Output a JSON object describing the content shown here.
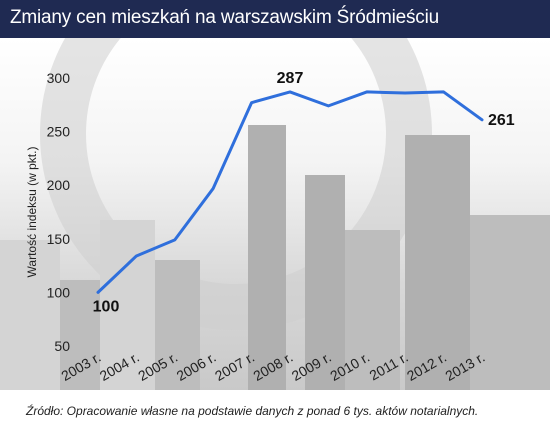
{
  "header": {
    "title": "Zmiany cen mieszkań na warszawskim Śródmieściu"
  },
  "colors": {
    "header_bg": "#1f2a52",
    "line": "#2f6fdc"
  },
  "chart_data": {
    "type": "line",
    "categories": [
      "2003 r.",
      "2004 r.",
      "2005 r.",
      "2006 r.",
      "2007 r.",
      "2008 r.",
      "2009 r.",
      "2010 r.",
      "2011 r.",
      "2012 r.",
      "2013 r."
    ],
    "series": [
      {
        "values": [
          100,
          134,
          149,
          197,
          277,
          287,
          274,
          287,
          286,
          287,
          261
        ]
      }
    ],
    "ylabel": "Wartość indeksu (w pkt.)",
    "xlabel": "",
    "ylim": [
      50,
      300
    ],
    "yticks": [
      50,
      100,
      150,
      200,
      250,
      300
    ],
    "ytick_labels": [
      "50",
      "100",
      "150",
      "200",
      "250",
      "300"
    ],
    "data_labels": [
      {
        "index": 0,
        "text": "100"
      },
      {
        "index": 5,
        "text": "287"
      },
      {
        "index": 10,
        "text": "261"
      }
    ],
    "grid": false,
    "legend": "none"
  },
  "footer": {
    "source": "Źródło: Opracowanie własne na podstawie danych z ponad 6 tys. aktów notarialnych."
  }
}
